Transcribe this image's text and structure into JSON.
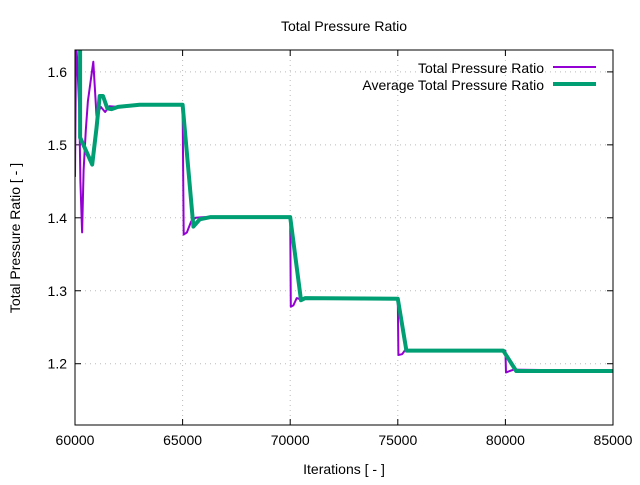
{
  "chart_data": {
    "type": "line",
    "title": "Total Pressure Ratio",
    "xlabel": "Iterations [ - ]",
    "ylabel": "Total Pressure Ratio [ - ]",
    "xlim": [
      60000,
      85000
    ],
    "ylim": [
      1.116,
      1.63
    ],
    "grid": true,
    "legend_position": "top-right",
    "xticks": [
      60000,
      65000,
      70000,
      75000,
      80000,
      85000
    ],
    "xtick_labels": [
      "60000",
      "65000",
      "70000",
      "75000",
      "80000",
      "85000"
    ],
    "yticks": [
      1.2,
      1.3,
      1.4,
      1.5,
      1.6
    ],
    "ytick_labels": [
      "1.2",
      "1.3",
      "1.4",
      "1.5",
      "1.6"
    ],
    "series": [
      {
        "name": "Total Pressure Ratio",
        "color": "#9400d3",
        "points": [
          [
            60000,
            1.456
          ],
          [
            60050,
            1.64
          ],
          [
            60100,
            1.616
          ],
          [
            60200,
            1.548
          ],
          [
            60250,
            1.45
          ],
          [
            60330,
            1.38
          ],
          [
            60400,
            1.465
          ],
          [
            60500,
            1.52
          ],
          [
            60600,
            1.56
          ],
          [
            60850,
            1.614
          ],
          [
            61000,
            1.54
          ],
          [
            61200,
            1.552
          ],
          [
            61400,
            1.545
          ],
          [
            61600,
            1.553
          ],
          [
            62000,
            1.552
          ],
          [
            63000,
            1.555
          ],
          [
            65000,
            1.555
          ],
          [
            65050,
            1.377
          ],
          [
            65200,
            1.38
          ],
          [
            65400,
            1.395
          ],
          [
            65600,
            1.4
          ],
          [
            66000,
            1.401
          ],
          [
            70000,
            1.401
          ],
          [
            70030,
            1.278
          ],
          [
            70150,
            1.28
          ],
          [
            70300,
            1.29
          ],
          [
            70500,
            1.288
          ],
          [
            70700,
            1.29
          ],
          [
            75000,
            1.289
          ],
          [
            75030,
            1.212
          ],
          [
            75200,
            1.213
          ],
          [
            75350,
            1.219
          ],
          [
            75600,
            1.218
          ],
          [
            80000,
            1.218
          ],
          [
            80030,
            1.188
          ],
          [
            80200,
            1.19
          ],
          [
            80400,
            1.192
          ],
          [
            85000,
            1.19
          ]
        ]
      },
      {
        "name": "Average Total Pressure Ratio",
        "color": "#009e73",
        "points": [
          [
            60236,
            1.64
          ],
          [
            60236,
            1.51
          ],
          [
            60800,
            1.473
          ],
          [
            61000,
            1.523
          ],
          [
            61150,
            1.567
          ],
          [
            61300,
            1.567
          ],
          [
            61500,
            1.55
          ],
          [
            61700,
            1.549
          ],
          [
            62000,
            1.552
          ],
          [
            63000,
            1.555
          ],
          [
            65000,
            1.555
          ],
          [
            65500,
            1.388
          ],
          [
            65800,
            1.398
          ],
          [
            66300,
            1.401
          ],
          [
            70000,
            1.401
          ],
          [
            70500,
            1.287
          ],
          [
            70700,
            1.29
          ],
          [
            75000,
            1.289
          ],
          [
            75400,
            1.218
          ],
          [
            79900,
            1.218
          ],
          [
            80500,
            1.19
          ],
          [
            85000,
            1.19
          ]
        ]
      }
    ]
  }
}
